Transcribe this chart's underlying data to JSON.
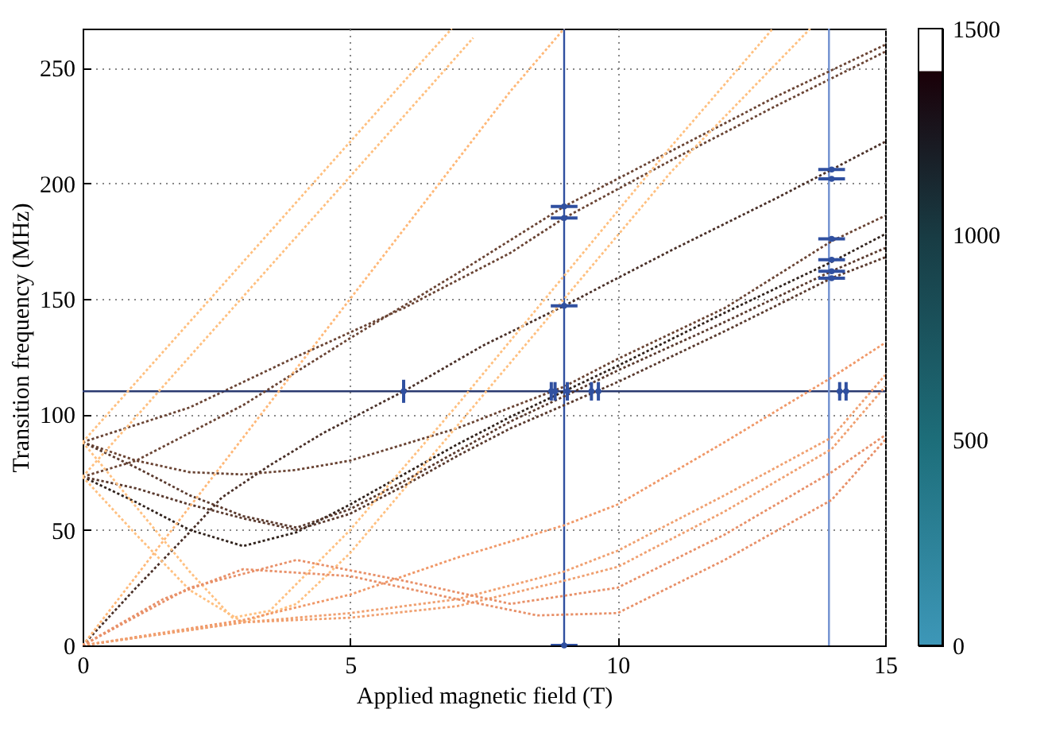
{
  "chart_data": {
    "type": "line",
    "xlabel": "Applied magnetic field (T)",
    "ylabel": "Transition frequency (MHz)",
    "xlim": [
      0,
      15
    ],
    "ylim": [
      0,
      267
    ],
    "xticks": [
      0,
      5,
      10,
      15
    ],
    "yticks": [
      0,
      50,
      100,
      150,
      200,
      250
    ],
    "grid": true,
    "line_style": "dotted",
    "clim": [
      0,
      1500
    ],
    "cticks": [
      0,
      500,
      1000,
      1500
    ],
    "ref_lines": [
      {
        "axis": "y",
        "value": 110,
        "color": "#2a3a70"
      },
      {
        "axis": "x",
        "value": 9,
        "color": "#3050a0"
      },
      {
        "axis": "x",
        "value": 13.95,
        "color": "#7090d0"
      }
    ],
    "series": [
      {
        "color": "#6a4434",
        "x": [
          0,
          2,
          4,
          6,
          8,
          9,
          11,
          13,
          15
        ],
        "values": [
          88,
          103,
          125,
          146,
          170,
          185,
          210,
          234,
          257
        ]
      },
      {
        "color": "#6a4434",
        "x": [
          0,
          1,
          3,
          5,
          7,
          9,
          11,
          13,
          15
        ],
        "values": [
          73,
          80,
          104,
          133,
          161,
          190,
          214,
          238,
          260
        ]
      },
      {
        "color": "#4a3028",
        "x": [
          0,
          1,
          2,
          2.6,
          3.5,
          4.5,
          6,
          7.5,
          9,
          11,
          13,
          15
        ],
        "values": [
          0,
          25,
          49,
          64,
          78,
          92,
          110,
          130,
          147,
          171,
          194,
          218
        ]
      },
      {
        "color": "#6a4434",
        "x": [
          0,
          1,
          2,
          3,
          4,
          5,
          6,
          7,
          8,
          9,
          10,
          12,
          14,
          15
        ],
        "values": [
          88,
          80,
          75,
          74,
          76,
          80,
          87,
          94,
          103,
          112,
          124,
          146,
          175,
          186
        ]
      },
      {
        "color": "#30221c",
        "x": [
          0,
          1,
          2,
          3,
          4,
          5,
          6,
          7,
          8,
          9,
          10,
          12,
          14,
          15
        ],
        "values": [
          73,
          62,
          50,
          43,
          49,
          61,
          74,
          87,
          99,
          110,
          121,
          144,
          166,
          178
        ]
      },
      {
        "color": "#5a3a2e",
        "x": [
          0,
          1,
          2,
          3,
          4,
          5,
          6,
          7,
          8,
          9.2,
          10,
          12,
          14,
          15
        ],
        "values": [
          88,
          77,
          65,
          56,
          51,
          59,
          71,
          84,
          97,
          110,
          119,
          140,
          162,
          172
        ]
      },
      {
        "color": "#5a3a2e",
        "x": [
          0,
          1,
          2,
          3,
          4,
          5,
          6,
          7,
          8,
          9.6,
          10,
          12,
          14,
          15
        ],
        "values": [
          73,
          68,
          61,
          55,
          50,
          57,
          69,
          82,
          94,
          110,
          114,
          136,
          159,
          168
        ]
      },
      {
        "color": "#ffc080",
        "x": [
          0,
          2,
          4,
          6,
          6.9
        ],
        "values": [
          88,
          140,
          192,
          244,
          267
        ]
      },
      {
        "color": "#ffc080",
        "x": [
          0,
          2,
          4,
          6,
          7.3
        ],
        "values": [
          73,
          125,
          177,
          229,
          263
        ]
      },
      {
        "color": "#ffb878",
        "x": [
          0,
          2,
          4,
          6,
          8,
          9
        ],
        "values": [
          0,
          60,
          120,
          180,
          240,
          267
        ]
      },
      {
        "color": "#ffc080",
        "x": [
          0,
          1,
          2,
          2.8,
          3.5,
          5,
          7,
          9,
          11,
          12.9
        ],
        "values": [
          88,
          60,
          32,
          12,
          15,
          50,
          104,
          160,
          216,
          267
        ]
      },
      {
        "color": "#ffc080",
        "x": [
          0,
          1,
          2,
          3,
          4,
          5,
          7,
          9,
          11,
          13.6
        ],
        "values": [
          73,
          48,
          24,
          10,
          18,
          40,
          95,
          150,
          205,
          267
        ]
      },
      {
        "color": "#f09868",
        "x": [
          0,
          3,
          5,
          7,
          9,
          10,
          12,
          14,
          15
        ],
        "values": [
          0,
          11,
          22,
          38,
          52,
          61,
          88,
          116,
          131
        ]
      },
      {
        "color": "#f0a070",
        "x": [
          0,
          3,
          5,
          7,
          9,
          10,
          12,
          14,
          15
        ],
        "values": [
          0,
          10,
          14,
          20,
          32,
          41,
          65,
          90,
          117
        ]
      },
      {
        "color": "#f0a070",
        "x": [
          0,
          3,
          5,
          7,
          9,
          10,
          12,
          14,
          15
        ],
        "values": [
          0,
          10,
          12,
          17,
          28,
          34,
          58,
          85,
          112
        ]
      },
      {
        "color": "#e89068",
        "x": [
          0,
          2,
          4,
          6,
          8,
          10,
          12,
          14,
          15
        ],
        "values": [
          0,
          25,
          37,
          28,
          18,
          25,
          48,
          75,
          91
        ]
      },
      {
        "color": "#e89068",
        "x": [
          0,
          1.5,
          3,
          5,
          7,
          8.5,
          10,
          12,
          14,
          15
        ],
        "values": [
          0,
          20,
          33,
          30,
          20,
          13,
          14,
          37,
          63,
          89
        ]
      },
      {
        "type": "scatter",
        "color": "#3050a0",
        "marker": "circle",
        "x": [
          6,
          9,
          9,
          9,
          9,
          8.76,
          8.83,
          9.06,
          9.51,
          9.64,
          14.15,
          14.27,
          14,
          14,
          14,
          14,
          14,
          14
        ],
        "values": [
          110,
          190,
          185,
          147,
          0,
          110,
          110,
          110,
          110,
          110,
          110,
          110,
          206,
          202,
          176,
          167,
          162,
          159
        ],
        "errors": [
          5,
          null,
          null,
          null,
          null,
          4,
          4,
          4,
          4,
          4,
          4,
          4,
          null,
          null,
          null,
          null,
          null,
          null
        ],
        "xerrors": [
          null,
          0.25,
          0.25,
          0.25,
          0.25,
          null,
          null,
          null,
          null,
          null,
          null,
          null,
          0.25,
          0.25,
          0.25,
          0.25,
          0.25,
          0.25
        ]
      }
    ]
  }
}
